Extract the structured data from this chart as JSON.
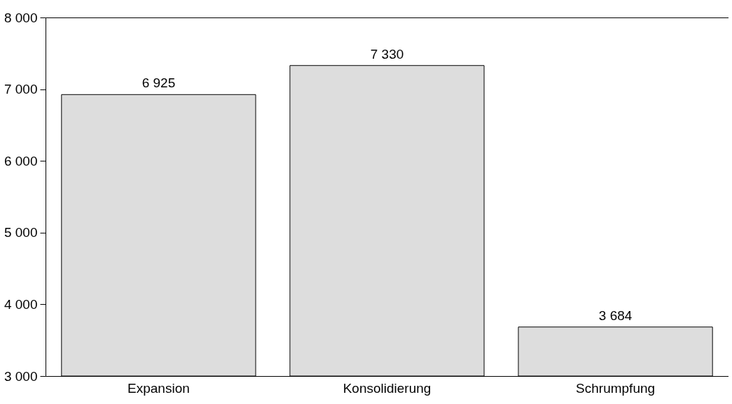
{
  "chart_data": {
    "type": "bar",
    "categories": [
      "Expansion",
      "Konsolidierung",
      "Schrumpfung"
    ],
    "values": [
      6925,
      7330,
      3684
    ],
    "value_labels": [
      "6 925",
      "7 330",
      "3 684"
    ],
    "color": "#dddddd",
    "ylim": [
      3000,
      8000
    ],
    "yticks": [
      {
        "value": 3000,
        "label": "3 000"
      },
      {
        "value": 4000,
        "label": "4 000"
      },
      {
        "value": 5000,
        "label": "5 000"
      },
      {
        "value": 6000,
        "label": "6 000"
      },
      {
        "value": 7000,
        "label": "7 000"
      },
      {
        "value": 8000,
        "label": "8 000"
      }
    ],
    "grid": false
  }
}
